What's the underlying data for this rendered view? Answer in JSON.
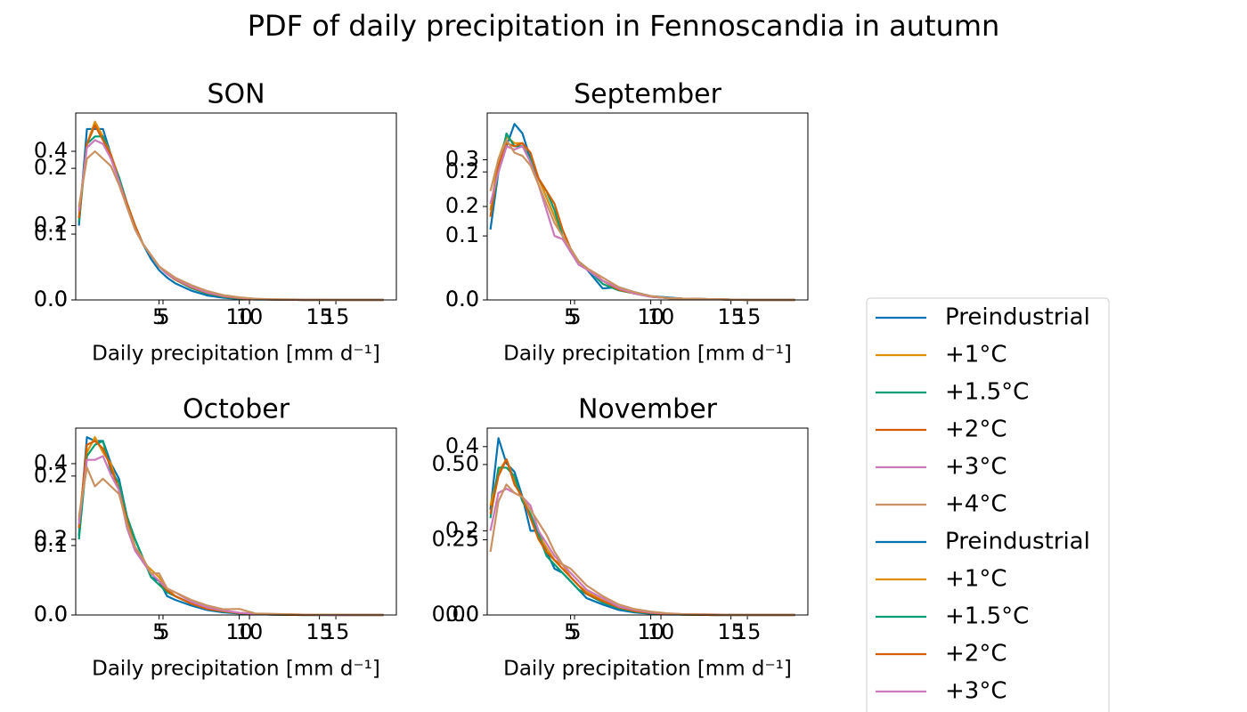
{
  "title": "PDF of daily precipitation in Fennoscandia in autumn",
  "chart_data": [
    {
      "type": "line",
      "title": "SON",
      "xlabel": "Daily precipitation [mm d⁻¹]",
      "x": [
        0,
        0.5,
        1,
        1.5,
        2,
        2.5,
        3,
        3.5,
        4,
        4.5,
        5,
        5.5,
        6,
        7,
        8,
        9,
        10,
        11,
        12,
        14,
        16,
        19
      ],
      "xlim": [
        -0.2,
        19.8
      ],
      "xticks": [
        5,
        10,
        15
      ],
      "x2lim": [
        -0.05,
        18.5
      ],
      "x2ticks": [
        5,
        10,
        15
      ],
      "ylim": [
        0,
        0.503
      ],
      "yticks": [
        {
          "value": 0,
          "label": "0.0"
        },
        0.2,
        0.4
      ],
      "y2lim": [
        0,
        0.284
      ],
      "y2ticks": [
        {
          "value": 0,
          "label": "0.0"
        },
        0.1,
        0.2
      ],
      "series": [
        {
          "name": "Preindustrial",
          "color": "#0173b2",
          "values": [
            0.2,
            0.46,
            0.46,
            0.46,
            0.39,
            0.33,
            0.26,
            0.2,
            0.15,
            0.11,
            0.08,
            0.06,
            0.045,
            0.025,
            0.012,
            0.006,
            0.003,
            0.001,
            0.001,
            0,
            0,
            0
          ]
        },
        {
          "name": "+1°C",
          "color": "#de8f05",
          "values": [
            0.22,
            0.42,
            0.48,
            0.44,
            0.39,
            0.33,
            0.25,
            0.2,
            0.15,
            0.12,
            0.09,
            0.07,
            0.055,
            0.033,
            0.018,
            0.009,
            0.004,
            0.002,
            0.001,
            0,
            0,
            0
          ]
        },
        {
          "name": "+1.5°C",
          "color": "#029e73",
          "values": [
            0.21,
            0.42,
            0.44,
            0.44,
            0.38,
            0.33,
            0.26,
            0.2,
            0.15,
            0.12,
            0.09,
            0.07,
            0.055,
            0.032,
            0.017,
            0.009,
            0.004,
            0.002,
            0.001,
            0,
            0,
            0
          ]
        },
        {
          "name": "+2°C",
          "color": "#d55e00",
          "values": [
            0.22,
            0.42,
            0.47,
            0.43,
            0.39,
            0.32,
            0.26,
            0.2,
            0.15,
            0.12,
            0.09,
            0.07,
            0.055,
            0.034,
            0.019,
            0.01,
            0.005,
            0.002,
            0.001,
            0,
            0,
            0
          ]
        },
        {
          "name": "+3°C",
          "color": "#cc78bc",
          "values": [
            0.24,
            0.41,
            0.43,
            0.42,
            0.38,
            0.32,
            0.25,
            0.19,
            0.15,
            0.12,
            0.09,
            0.07,
            0.057,
            0.036,
            0.02,
            0.011,
            0.006,
            0.003,
            0.001,
            0.0005,
            0,
            0
          ]
        },
        {
          "name": "+4°C",
          "color": "#ca9161",
          "values": [
            0.25,
            0.38,
            0.4,
            0.38,
            0.36,
            0.31,
            0.25,
            0.19,
            0.15,
            0.12,
            0.09,
            0.075,
            0.06,
            0.04,
            0.024,
            0.013,
            0.007,
            0.003,
            0.002,
            0.001,
            0,
            0
          ]
        }
      ]
    },
    {
      "type": "line",
      "title": "September",
      "xlabel": "Daily precipitation [mm d⁻¹]",
      "x": [
        0,
        0.5,
        1,
        1.5,
        2,
        2.5,
        3,
        3.5,
        4,
        4.5,
        5,
        5.5,
        6,
        7,
        8,
        9,
        10,
        11,
        12,
        14,
        16,
        19
      ],
      "xlim": [
        -0.2,
        19.8
      ],
      "xticks": [
        5,
        10,
        15
      ],
      "x2lim": [
        -0.05,
        18.5
      ],
      "x2ticks": [
        5,
        10,
        15
      ],
      "ylim": [
        0,
        0.292
      ],
      "yticks": [
        {
          "value": 0,
          "label": "0.0"
        },
        0.1,
        0.2
      ],
      "y2lim": [
        0,
        0.4
      ],
      "y2ticks": [
        {
          "value": 0,
          "label": "0.0"
        },
        0.2,
        0.3
      ],
      "series": [
        {
          "name": "Preindustrial",
          "color": "#0173b2",
          "values": [
            0.11,
            0.2,
            0.24,
            0.275,
            0.26,
            0.22,
            0.19,
            0.16,
            0.13,
            0.1,
            0.075,
            0.06,
            0.048,
            0.018,
            0.02,
            0.012,
            0.006,
            0.004,
            0.002,
            0.001,
            0,
            0
          ]
        },
        {
          "name": "+1°C",
          "color": "#de8f05",
          "values": [
            0.14,
            0.22,
            0.255,
            0.245,
            0.245,
            0.215,
            0.19,
            0.16,
            0.13,
            0.1,
            0.08,
            0.06,
            0.05,
            0.03,
            0.018,
            0.01,
            0.006,
            0.003,
            0.002,
            0.001,
            0,
            0
          ]
        },
        {
          "name": "+1.5°C",
          "color": "#029e73",
          "values": [
            0.13,
            0.2,
            0.26,
            0.24,
            0.24,
            0.22,
            0.19,
            0.17,
            0.14,
            0.1,
            0.08,
            0.06,
            0.05,
            0.025,
            0.015,
            0.01,
            0.005,
            0.003,
            0.002,
            0.001,
            0,
            0
          ]
        },
        {
          "name": "+2°C",
          "color": "#d55e00",
          "values": [
            0.13,
            0.21,
            0.245,
            0.24,
            0.245,
            0.23,
            0.19,
            0.17,
            0.15,
            0.11,
            0.08,
            0.06,
            0.05,
            0.03,
            0.016,
            0.01,
            0.005,
            0.003,
            0.002,
            0.001,
            0,
            0
          ]
        },
        {
          "name": "+3°C",
          "color": "#cc78bc",
          "values": [
            0.15,
            0.2,
            0.24,
            0.235,
            0.24,
            0.215,
            0.18,
            0.14,
            0.1,
            0.095,
            0.075,
            0.055,
            0.048,
            0.03,
            0.018,
            0.01,
            0.005,
            0.003,
            0.002,
            0.001,
            0,
            0
          ]
        },
        {
          "name": "+4°C",
          "color": "#ca9161",
          "values": [
            0.17,
            0.22,
            0.25,
            0.23,
            0.225,
            0.21,
            0.18,
            0.15,
            0.12,
            0.1,
            0.08,
            0.06,
            0.05,
            0.035,
            0.02,
            0.012,
            0.006,
            0.003,
            0.002,
            0.001,
            0,
            0
          ]
        }
      ]
    },
    {
      "type": "line",
      "title": "October",
      "xlabel": "Daily precipitation [mm d⁻¹]",
      "x": [
        0,
        0.5,
        1,
        1.5,
        2,
        2.5,
        3,
        3.5,
        4,
        4.5,
        5,
        5.5,
        6,
        7,
        8,
        9,
        10,
        11,
        12,
        14,
        16,
        19
      ],
      "xlim": [
        -0.2,
        19.8
      ],
      "xticks": [
        5,
        10,
        15
      ],
      "x2lim": [
        -0.05,
        18.5
      ],
      "x2ticks": [
        5,
        10,
        15
      ],
      "ylim": [
        0,
        0.494
      ],
      "yticks": [
        {
          "value": 0,
          "label": "0.0"
        },
        0.2,
        0.4
      ],
      "y2lim": [
        0,
        0.269
      ],
      "y2ticks": [
        {
          "value": 0,
          "label": "0.0"
        },
        0.1,
        0.2
      ],
      "series": [
        {
          "color": "#0173b2",
          "values": [
            0.21,
            0.47,
            0.46,
            0.46,
            0.4,
            0.36,
            0.26,
            0.2,
            0.15,
            0.1,
            0.09,
            0.05,
            0.04,
            0.025,
            0.013,
            0.007,
            0.004,
            0.002,
            0.001,
            0,
            0,
            0
          ]
        },
        {
          "color": "#de8f05",
          "values": [
            0.25,
            0.43,
            0.47,
            0.43,
            0.4,
            0.33,
            0.25,
            0.18,
            0.14,
            0.12,
            0.1,
            0.07,
            0.05,
            0.03,
            0.016,
            0.01,
            0.006,
            0.003,
            0.002,
            0.001,
            0,
            0
          ]
        },
        {
          "color": "#029e73",
          "values": [
            0.2,
            0.42,
            0.45,
            0.46,
            0.38,
            0.35,
            0.26,
            0.2,
            0.15,
            0.1,
            0.08,
            0.06,
            0.05,
            0.03,
            0.017,
            0.009,
            0.005,
            0.002,
            0.001,
            0,
            0,
            0
          ]
        },
        {
          "color": "#d55e00",
          "values": [
            0.23,
            0.45,
            0.46,
            0.44,
            0.39,
            0.33,
            0.25,
            0.18,
            0.14,
            0.11,
            0.09,
            0.065,
            0.05,
            0.03,
            0.016,
            0.01,
            0.005,
            0.003,
            0.001,
            0,
            0,
            0
          ]
        },
        {
          "color": "#cc78bc",
          "values": [
            0.24,
            0.41,
            0.41,
            0.42,
            0.37,
            0.33,
            0.23,
            0.17,
            0.14,
            0.11,
            0.09,
            0.07,
            0.06,
            0.035,
            0.02,
            0.012,
            0.006,
            0.003,
            0.002,
            0.001,
            0,
            0
          ]
        },
        {
          "color": "#ca9161",
          "values": [
            0.26,
            0.39,
            0.34,
            0.36,
            0.34,
            0.32,
            0.24,
            0.18,
            0.15,
            0.11,
            0.11,
            0.07,
            0.06,
            0.04,
            0.025,
            0.015,
            0.016,
            0.004,
            0.003,
            0.001,
            0.001,
            0
          ]
        }
      ]
    },
    {
      "type": "line",
      "title": "November",
      "xlabel": "Daily precipitation [mm d⁻¹]",
      "x": [
        0,
        0.5,
        1,
        1.5,
        2,
        2.5,
        3,
        3.5,
        4,
        4.5,
        5,
        5.5,
        6,
        7,
        8,
        9,
        10,
        11,
        12,
        14,
        16,
        19
      ],
      "xlim": [
        -0.2,
        19.8
      ],
      "xticks": [
        5,
        10,
        15
      ],
      "x2lim": [
        -0.05,
        18.5
      ],
      "x2ticks": [
        5,
        10,
        15
      ],
      "ylim": [
        0,
        0.444
      ],
      "yticks": [
        {
          "value": 0,
          "label": "0.0"
        },
        0.2,
        0.4
      ],
      "y2lim": [
        0,
        0.621
      ],
      "y2ticks": [
        {
          "value": 0,
          "label": "0.00"
        },
        0.25,
        {
          "value": 0.5,
          "label": "0.50"
        }
      ],
      "series": [
        {
          "color": "#0173b2",
          "values": [
            0.25,
            0.42,
            0.36,
            0.34,
            0.28,
            0.2,
            0.2,
            0.15,
            0.11,
            0.1,
            0.08,
            0.06,
            0.04,
            0.025,
            0.012,
            0.006,
            0.003,
            0.001,
            0.001,
            0,
            0,
            0
          ]
        },
        {
          "color": "#de8f05",
          "values": [
            0.26,
            0.34,
            0.37,
            0.32,
            0.27,
            0.24,
            0.19,
            0.16,
            0.13,
            0.12,
            0.09,
            0.07,
            0.055,
            0.035,
            0.018,
            0.01,
            0.005,
            0.002,
            0.001,
            0,
            0,
            0
          ]
        },
        {
          "color": "#029e73",
          "values": [
            0.23,
            0.35,
            0.35,
            0.33,
            0.27,
            0.24,
            0.19,
            0.14,
            0.12,
            0.1,
            0.08,
            0.06,
            0.05,
            0.03,
            0.016,
            0.008,
            0.004,
            0.002,
            0.001,
            0,
            0,
            0
          ]
        },
        {
          "color": "#d55e00",
          "values": [
            0.24,
            0.33,
            0.37,
            0.31,
            0.28,
            0.23,
            0.18,
            0.15,
            0.13,
            0.11,
            0.09,
            0.07,
            0.05,
            0.033,
            0.018,
            0.009,
            0.005,
            0.002,
            0.001,
            0,
            0,
            0
          ]
        },
        {
          "color": "#cc78bc",
          "values": [
            0.2,
            0.29,
            0.3,
            0.29,
            0.28,
            0.26,
            0.2,
            0.17,
            0.14,
            0.12,
            0.1,
            0.08,
            0.06,
            0.04,
            0.02,
            0.012,
            0.006,
            0.003,
            0.002,
            0.001,
            0,
            0
          ]
        },
        {
          "color": "#ca9161",
          "values": [
            0.15,
            0.27,
            0.31,
            0.29,
            0.28,
            0.25,
            0.22,
            0.19,
            0.15,
            0.12,
            0.11,
            0.09,
            0.07,
            0.045,
            0.025,
            0.014,
            0.008,
            0.004,
            0.002,
            0.001,
            0,
            0
          ]
        }
      ]
    }
  ]
}
